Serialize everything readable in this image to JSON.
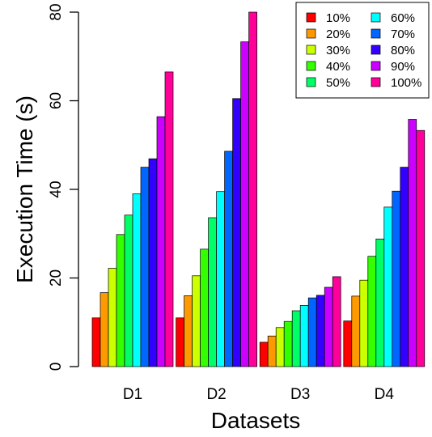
{
  "chart_data": {
    "type": "bar",
    "categories": [
      "D1",
      "D2",
      "D3",
      "D4"
    ],
    "xlabel": "Datasets",
    "ylabel": "Execution Time (s)",
    "ylim": [
      0,
      80
    ],
    "yticks": [
      0,
      20,
      40,
      60,
      80
    ],
    "grid": false,
    "legend_position": "top-right",
    "series": [
      {
        "name": "10%",
        "color": "#ff0000",
        "values": [
          11.0,
          11.0,
          5.5,
          10.3
        ]
      },
      {
        "name": "20%",
        "color": "#ff9900",
        "values": [
          16.7,
          16.0,
          6.9,
          15.9
        ]
      },
      {
        "name": "30%",
        "color": "#ccff00",
        "values": [
          22.2,
          20.5,
          8.8,
          19.5
        ]
      },
      {
        "name": "40%",
        "color": "#33ff00",
        "values": [
          29.8,
          26.5,
          10.2,
          24.9
        ]
      },
      {
        "name": "50%",
        "color": "#00ff66",
        "values": [
          34.2,
          33.6,
          12.6,
          28.8
        ]
      },
      {
        "name": "60%",
        "color": "#00ffff",
        "values": [
          39.0,
          39.5,
          13.8,
          36.0
        ]
      },
      {
        "name": "70%",
        "color": "#0066ff",
        "values": [
          45.0,
          48.6,
          15.5,
          39.6
        ]
      },
      {
        "name": "80%",
        "color": "#3300ff",
        "values": [
          46.9,
          60.5,
          16.1,
          45.0
        ]
      },
      {
        "name": "90%",
        "color": "#cc00ff",
        "values": [
          56.4,
          73.3,
          17.9,
          55.8
        ]
      },
      {
        "name": "100%",
        "color": "#ff0099",
        "values": [
          66.5,
          81.5,
          20.3,
          53.3
        ]
      }
    ]
  }
}
